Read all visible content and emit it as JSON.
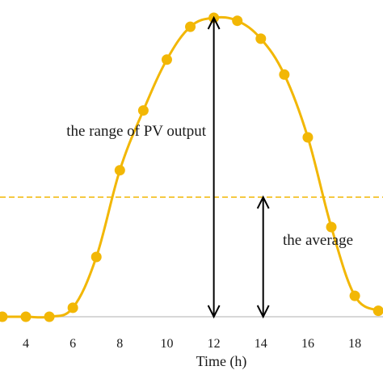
{
  "chart_data": {
    "type": "line",
    "xlabel": "Time (h)",
    "x_ticks": [
      4,
      6,
      8,
      10,
      12,
      14,
      16,
      18
    ],
    "xlim": [
      2.9,
      19.2
    ],
    "ylim": [
      0,
      1
    ],
    "grid": false,
    "series": [
      {
        "color": "#f2b705",
        "x": [
          2,
          3,
          4,
          5,
          6,
          7,
          8,
          9,
          10,
          11,
          12,
          13,
          14,
          15,
          16,
          17,
          18,
          19
        ],
        "y": [
          0,
          0,
          0,
          0,
          0.03,
          0.2,
          0.49,
          0.69,
          0.86,
          0.97,
          1.0,
          0.99,
          0.93,
          0.81,
          0.6,
          0.3,
          0.07,
          0.02
        ]
      }
    ],
    "average_line": {
      "y": 0.4,
      "color": "#f2b705",
      "style": "dashed"
    },
    "annotations": [
      {
        "text": "the range of PV output",
        "x": 12,
        "y_from": 0,
        "y_to": 1
      },
      {
        "text": "the average",
        "x": 14.1,
        "y_from": 0,
        "y_to": 0.4
      }
    ]
  }
}
